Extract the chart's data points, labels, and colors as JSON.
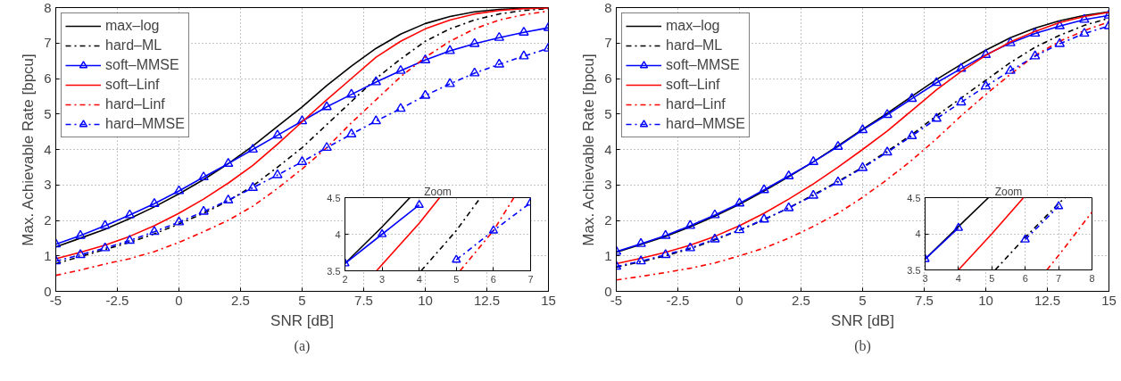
{
  "chart_data": [
    {
      "type": "line",
      "xlabel": "SNR [dB]",
      "ylabel": "Max. Achievable Rate [bpcu]",
      "annotations": [
        "(a)"
      ],
      "x": [
        -5,
        -4,
        -3,
        -2,
        -1,
        0,
        1,
        2,
        3,
        4,
        5,
        6,
        7,
        8,
        9,
        10,
        11,
        12,
        13,
        14,
        15
      ],
      "xlim": [
        -5,
        15
      ],
      "ylim": [
        0,
        8
      ],
      "xticks": [
        -5,
        -2.5,
        0,
        2.5,
        5,
        7.5,
        10,
        12.5,
        15
      ],
      "yticks": [
        0,
        1,
        2,
        3,
        4,
        5,
        6,
        7,
        8
      ],
      "grid": true,
      "legend": "top left",
      "series": [
        {
          "name": "max–log",
          "color": "#000000",
          "line_style": "solid",
          "marker": "none",
          "values": [
            1.25,
            1.5,
            1.75,
            2.05,
            2.38,
            2.75,
            3.15,
            3.6,
            4.1,
            4.65,
            5.2,
            5.8,
            6.35,
            6.85,
            7.25,
            7.55,
            7.75,
            7.88,
            7.95,
            7.98,
            8.0
          ]
        },
        {
          "name": "hard–ML",
          "color": "#000000",
          "line_style": "dashdot",
          "marker": "none",
          "values": [
            0.78,
            0.98,
            1.18,
            1.38,
            1.62,
            1.9,
            2.2,
            2.55,
            2.97,
            3.5,
            4.05,
            4.7,
            5.35,
            6.0,
            6.55,
            7.05,
            7.4,
            7.65,
            7.82,
            7.92,
            7.97
          ]
        },
        {
          "name": "soft–MMSE",
          "color": "#0000ff",
          "line_style": "solid",
          "marker": "triangle",
          "values": [
            1.33,
            1.57,
            1.85,
            2.15,
            2.47,
            2.83,
            3.22,
            3.6,
            4.0,
            4.4,
            4.8,
            5.2,
            5.55,
            5.9,
            6.22,
            6.52,
            6.78,
            6.98,
            7.15,
            7.3,
            7.43
          ]
        },
        {
          "name": "soft–Linf",
          "color": "#ff0000",
          "line_style": "solid",
          "marker": "none",
          "values": [
            0.92,
            1.1,
            1.3,
            1.55,
            1.85,
            2.2,
            2.6,
            3.05,
            3.55,
            4.15,
            4.78,
            5.4,
            6.0,
            6.6,
            7.05,
            7.4,
            7.65,
            7.82,
            7.92,
            7.97,
            7.99
          ]
        },
        {
          "name": "hard–Linf",
          "color": "#ff0000",
          "line_style": "dashdot",
          "marker": "none",
          "values": [
            0.45,
            0.6,
            0.77,
            0.92,
            1.12,
            1.38,
            1.68,
            2.0,
            2.4,
            2.9,
            3.45,
            4.05,
            4.75,
            5.4,
            6.05,
            6.6,
            7.05,
            7.4,
            7.65,
            7.8,
            7.9
          ]
        },
        {
          "name": "hard–MMSE",
          "color": "#0000ff",
          "line_style": "dashdot",
          "marker": "triangle",
          "values": [
            0.85,
            1.03,
            1.22,
            1.43,
            1.68,
            1.95,
            2.25,
            2.57,
            2.92,
            3.28,
            3.65,
            4.05,
            4.43,
            4.8,
            5.15,
            5.52,
            5.85,
            6.15,
            6.4,
            6.63,
            6.85
          ]
        }
      ]
    },
    {
      "type": "line",
      "title": "Zoom",
      "xlim": [
        2,
        7
      ],
      "ylim": [
        3.5,
        4.5
      ],
      "xticks": [
        2,
        3,
        4,
        5,
        6,
        7
      ],
      "yticks": [
        3.5,
        4,
        4.5
      ],
      "grid": true,
      "series": [
        {
          "color": "#000000",
          "line_style": "solid",
          "marker": "none",
          "x": [
            2,
            3,
            3.75
          ],
          "values": [
            3.6,
            4.1,
            4.5
          ]
        },
        {
          "color": "#000000",
          "line_style": "dashdot",
          "marker": "none",
          "x": [
            4.05,
            5,
            5.65
          ],
          "values": [
            3.5,
            4.05,
            4.5
          ]
        },
        {
          "color": "#0000ff",
          "line_style": "solid",
          "marker": "triangle",
          "x": [
            2,
            3,
            4
          ],
          "values": [
            3.6,
            4.0,
            4.4
          ]
        },
        {
          "color": "#ff0000",
          "line_style": "solid",
          "marker": "none",
          "x": [
            2.85,
            4,
            4.55
          ],
          "values": [
            3.5,
            4.15,
            4.5
          ]
        },
        {
          "color": "#ff0000",
          "line_style": "dashdot",
          "marker": "none",
          "x": [
            5.1,
            6,
            6.55
          ],
          "values": [
            3.5,
            4.05,
            4.5
          ]
        },
        {
          "color": "#0000ff",
          "line_style": "dashdot",
          "marker": "triangle",
          "x": [
            5,
            6,
            7
          ],
          "values": [
            3.65,
            4.05,
            4.43
          ]
        }
      ]
    },
    {
      "type": "line",
      "xlabel": "SNR [dB]",
      "ylabel": "Max. Achievable Rate [bpcu]",
      "annotations": [
        "(b)"
      ],
      "x": [
        -5,
        -4,
        -3,
        -2,
        -1,
        0,
        1,
        2,
        3,
        4,
        5,
        6,
        7,
        8,
        9,
        10,
        11,
        12,
        13,
        14,
        15
      ],
      "xlim": [
        -5,
        15
      ],
      "ylim": [
        0,
        8
      ],
      "xticks": [
        -5,
        -2.5,
        0,
        2.5,
        5,
        7.5,
        10,
        12.5,
        15
      ],
      "yticks": [
        0,
        1,
        2,
        3,
        4,
        5,
        6,
        7,
        8
      ],
      "grid": true,
      "legend": "top left",
      "series": [
        {
          "name": "max–log",
          "color": "#000000",
          "line_style": "solid",
          "marker": "none",
          "values": [
            1.1,
            1.32,
            1.55,
            1.82,
            2.12,
            2.45,
            2.83,
            3.23,
            3.65,
            4.1,
            4.57,
            5.02,
            5.5,
            5.97,
            6.4,
            6.8,
            7.15,
            7.42,
            7.63,
            7.78,
            7.88
          ]
        },
        {
          "name": "hard–ML",
          "color": "#000000",
          "line_style": "dashdot",
          "marker": "none",
          "values": [
            0.68,
            0.83,
            1.0,
            1.2,
            1.45,
            1.72,
            2.02,
            2.35,
            2.72,
            3.1,
            3.5,
            3.95,
            4.42,
            4.95,
            5.45,
            5.95,
            6.45,
            6.88,
            7.22,
            7.5,
            7.7
          ]
        },
        {
          "name": "soft–MMSE",
          "color": "#0000ff",
          "line_style": "solid",
          "marker": "triangle",
          "values": [
            1.12,
            1.34,
            1.57,
            1.85,
            2.15,
            2.48,
            2.86,
            3.25,
            3.65,
            4.08,
            4.55,
            4.98,
            5.43,
            5.88,
            6.28,
            6.67,
            7.0,
            7.27,
            7.48,
            7.66,
            7.78
          ]
        },
        {
          "name": "soft–Linf",
          "color": "#ff0000",
          "line_style": "solid",
          "marker": "none",
          "values": [
            0.78,
            0.93,
            1.1,
            1.3,
            1.55,
            1.85,
            2.2,
            2.6,
            3.03,
            3.5,
            4.0,
            4.52,
            5.1,
            5.68,
            6.2,
            6.65,
            7.03,
            7.33,
            7.58,
            7.75,
            7.87
          ]
        },
        {
          "name": "hard–Linf",
          "color": "#ff0000",
          "line_style": "dashdot",
          "marker": "none",
          "values": [
            0.32,
            0.42,
            0.53,
            0.65,
            0.8,
            1.0,
            1.22,
            1.5,
            1.83,
            2.2,
            2.65,
            3.15,
            3.7,
            4.3,
            4.95,
            5.55,
            6.12,
            6.65,
            7.05,
            7.35,
            7.6
          ]
        },
        {
          "name": "hard–MMSE",
          "color": "#0000ff",
          "line_style": "dashdot",
          "marker": "triangle",
          "values": [
            0.7,
            0.85,
            1.03,
            1.22,
            1.47,
            1.73,
            2.03,
            2.35,
            2.7,
            3.08,
            3.48,
            3.92,
            4.38,
            4.87,
            5.33,
            5.78,
            6.22,
            6.63,
            6.98,
            7.27,
            7.48
          ]
        }
      ]
    },
    {
      "type": "line",
      "title": "Zoom",
      "xlim": [
        3,
        8
      ],
      "ylim": [
        3.5,
        4.5
      ],
      "xticks": [
        3,
        4,
        5,
        6,
        7,
        8
      ],
      "yticks": [
        3.5,
        4,
        4.5
      ],
      "grid": true,
      "series": [
        {
          "color": "#000000",
          "line_style": "solid",
          "marker": "none",
          "x": [
            3,
            4,
            4.9
          ],
          "values": [
            3.65,
            4.1,
            4.5
          ]
        },
        {
          "color": "#000000",
          "line_style": "dashdot",
          "marker": "none",
          "x": [
            5.1,
            6,
            7,
            7.2
          ],
          "values": [
            3.5,
            3.95,
            4.42,
            4.5
          ]
        },
        {
          "color": "#0000ff",
          "line_style": "solid",
          "marker": "triangle",
          "x": [
            3,
            4
          ],
          "values": [
            3.65,
            4.08
          ]
        },
        {
          "color": "#ff0000",
          "line_style": "solid",
          "marker": "none",
          "x": [
            4,
            5,
            5.95
          ],
          "values": [
            3.5,
            4.0,
            4.5
          ]
        },
        {
          "color": "#ff0000",
          "line_style": "dashdot",
          "marker": "none",
          "x": [
            6.65,
            7,
            8
          ],
          "values": [
            3.5,
            3.7,
            4.3
          ]
        },
        {
          "color": "#0000ff",
          "line_style": "dashdot",
          "marker": "triangle",
          "x": [
            6,
            7
          ],
          "values": [
            3.92,
            4.38
          ]
        }
      ]
    }
  ]
}
